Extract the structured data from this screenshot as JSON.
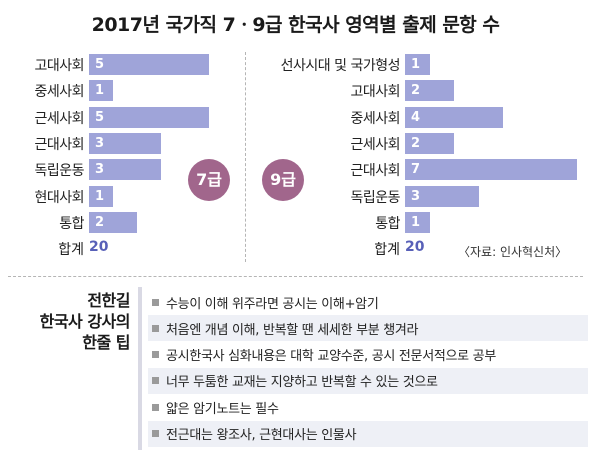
{
  "title": "2017년 국가직 7ㆍ9급 한국사 영역별 출제 문항 수",
  "chart_data": [
    {
      "type": "bar",
      "orientation": "horizontal",
      "grade_badge": "7급",
      "categories": [
        "고대사회",
        "중세사회",
        "근세사회",
        "근대사회",
        "독립운동",
        "현대사회",
        "통합"
      ],
      "values": [
        5,
        1,
        5,
        3,
        3,
        1,
        2
      ],
      "total_label": "합계",
      "total": "20",
      "color": "#9fa4d9"
    },
    {
      "type": "bar",
      "orientation": "horizontal",
      "grade_badge": "9급",
      "categories": [
        "선사시대 및 국가형성",
        "고대사회",
        "중세사회",
        "근세사회",
        "근대사회",
        "독립운동",
        "통합"
      ],
      "values": [
        1,
        2,
        4,
        2,
        7,
        3,
        1
      ],
      "total_label": "합계",
      "total": "20",
      "color": "#9fa4d9"
    }
  ],
  "source": "〈자료: 인사혁신처〉",
  "tips": {
    "title_lines": [
      "전한길",
      "한국사 강사의",
      "한줄 팁"
    ],
    "items": [
      "수능이 이해 위주라면 공시는 이해+암기",
      "처음엔 개념 이해, 반복할 땐 세세한 부분 챙겨라",
      "공시한국사 심화내용은 대학 교양수준, 공시 전문서적으로 공부",
      "너무 두툼한 교재는 지양하고 반복할 수 있는 것으로",
      "얇은 암기노트는 필수",
      "전근대는 왕조사, 근현대사는 인물사"
    ]
  },
  "colors": {
    "bar": "#9fa4d9",
    "badge": "#a1668c",
    "total": "#5860b8"
  }
}
